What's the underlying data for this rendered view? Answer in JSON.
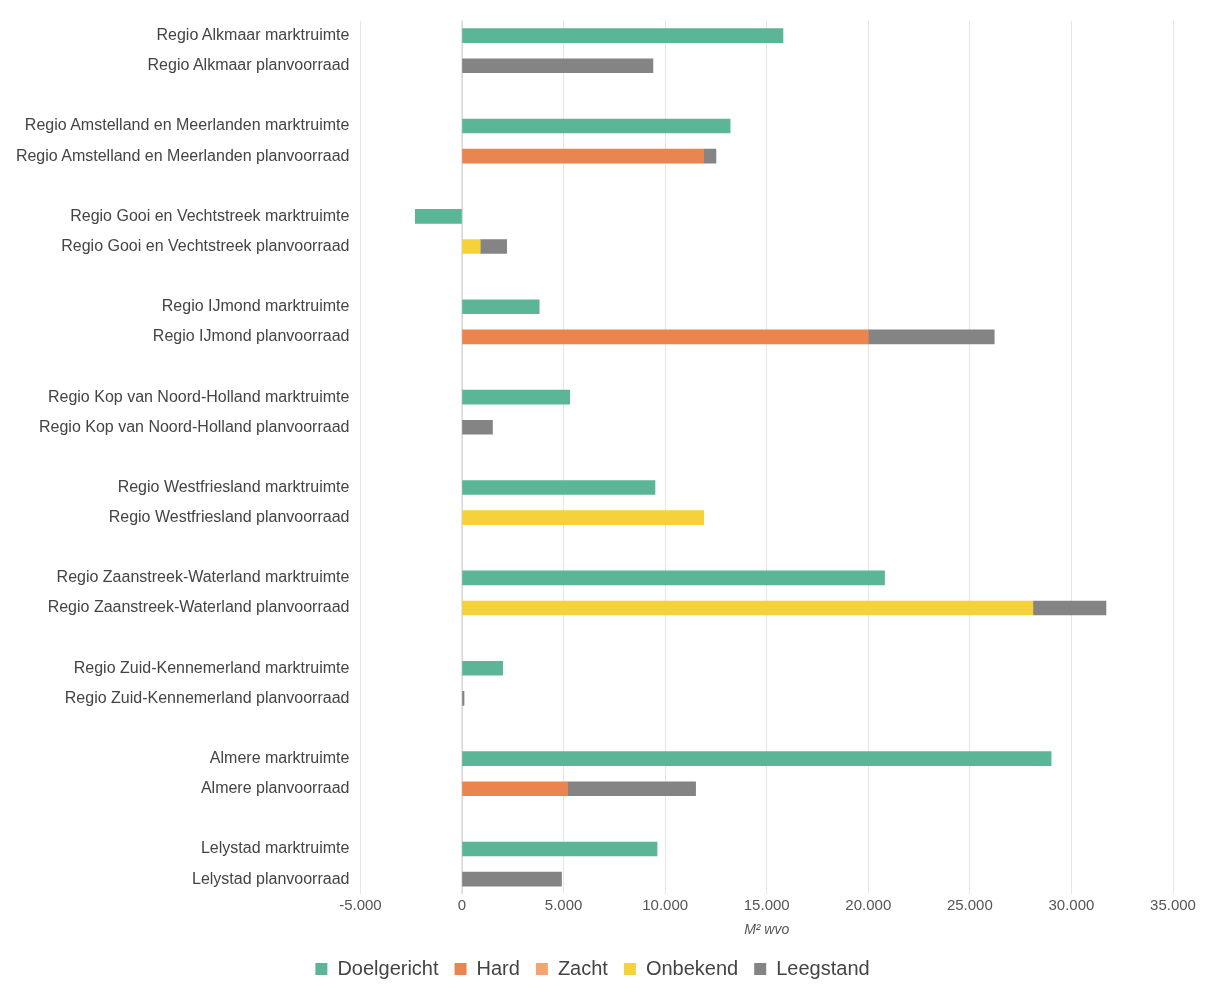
{
  "chart_data": {
    "type": "bar",
    "orientation": "horizontal",
    "stacked": true,
    "xlabel": "M² wvo",
    "legend": "bottom",
    "grid": "x",
    "categories": [
      "Regio Alkmaar marktruimte",
      "Regio Alkmaar planvoorraad",
      null,
      "Regio Amstelland en Meerlanden marktruimte",
      "Regio Amstelland en Meerlanden planvoorraad",
      null,
      "Regio Gooi en Vechtstreek marktruimte",
      "Regio Gooi en Vechtstreek planvoorraad",
      null,
      "Regio IJmond marktruimte",
      "Regio IJmond planvoorraad",
      null,
      "Regio Kop van Noord-Holland marktruimte",
      "Regio Kop van Noord-Holland planvoorraad",
      null,
      "Regio Westfriesland marktruimte",
      "Regio Westfriesland planvoorraad",
      null,
      "Regio Zaanstreek-Waterland marktruimte",
      "Regio Zaanstreek-Waterland planvoorraad",
      null,
      "Regio Zuid-Kennemerland marktruimte",
      "Regio Zuid-Kennemerland planvoorraad",
      null,
      "Almere marktruimte",
      "Almere planvoorraad",
      null,
      "Lelystad marktruimte",
      "Lelystad planvoorraad"
    ],
    "series": [
      {
        "name": "Doelgericht",
        "color": "#5bb597",
        "values": [
          15800,
          null,
          null,
          13200,
          null,
          null,
          -2300,
          null,
          null,
          3800,
          null,
          null,
          5300,
          null,
          null,
          9500,
          null,
          null,
          20800,
          null,
          null,
          2000,
          null,
          null,
          29000,
          null,
          null,
          9600,
          null
        ]
      },
      {
        "name": "Hard",
        "color": "#ea8550",
        "values": [
          null,
          null,
          null,
          null,
          11900,
          null,
          null,
          null,
          null,
          null,
          20000,
          null,
          null,
          null,
          null,
          null,
          null,
          null,
          null,
          null,
          null,
          null,
          null,
          null,
          null,
          5200,
          null,
          null,
          null
        ]
      },
      {
        "name": "Zacht",
        "color": "#f4a46c",
        "values": [
          null,
          null,
          null,
          null,
          null,
          null,
          null,
          null,
          null,
          null,
          null,
          null,
          null,
          null,
          null,
          null,
          null,
          null,
          null,
          null,
          null,
          null,
          null,
          null,
          null,
          null,
          null,
          null,
          null
        ]
      },
      {
        "name": "Onbekend",
        "color": "#f5d13a",
        "values": [
          null,
          null,
          null,
          null,
          null,
          null,
          null,
          900,
          null,
          null,
          null,
          null,
          null,
          null,
          null,
          null,
          11900,
          null,
          null,
          28100,
          null,
          null,
          null,
          null,
          null,
          null,
          null,
          null,
          null
        ]
      },
      {
        "name": "Leegstand",
        "color": "#848484",
        "values": [
          null,
          9400,
          null,
          null,
          600,
          null,
          null,
          1300,
          null,
          null,
          6200,
          null,
          null,
          1500,
          null,
          null,
          null,
          null,
          null,
          3600,
          null,
          null,
          100,
          null,
          null,
          6300,
          null,
          null,
          4900
        ]
      }
    ],
    "xlim": [
      -5000,
      35000
    ],
    "xticks": [
      {
        "value": -5000,
        "label": "-5.000"
      },
      0,
      {
        "value": 5000,
        "label": "5.000"
      },
      {
        "value": 10000,
        "label": "10.000"
      },
      {
        "value": 15000,
        "label": "15.000"
      },
      {
        "value": 20000,
        "label": "20.000"
      },
      {
        "value": 25000,
        "label": "25.000"
      },
      {
        "value": 30000,
        "label": "30.000"
      },
      {
        "value": 35000,
        "label": "35.000"
      }
    ]
  }
}
